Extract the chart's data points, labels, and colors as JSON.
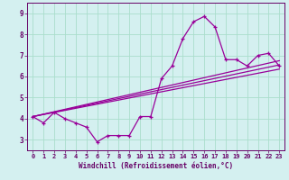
{
  "xlabel": "Windchill (Refroidissement éolien,°C)",
  "x_hours": [
    0,
    1,
    2,
    3,
    4,
    5,
    6,
    7,
    8,
    9,
    10,
    11,
    12,
    13,
    14,
    15,
    16,
    17,
    18,
    19,
    20,
    21,
    22,
    23
  ],
  "y_data": [
    4.1,
    3.8,
    4.3,
    4.0,
    3.8,
    3.6,
    2.9,
    3.2,
    3.2,
    3.2,
    4.1,
    4.1,
    5.9,
    6.5,
    7.8,
    8.6,
    8.85,
    8.35,
    6.8,
    6.8,
    6.5,
    7.0,
    7.1,
    6.5
  ],
  "trend1_x": [
    0,
    23
  ],
  "trend1_y": [
    4.1,
    6.35
  ],
  "trend2_x": [
    0,
    23
  ],
  "trend2_y": [
    4.1,
    6.55
  ],
  "trend3_x": [
    0,
    23
  ],
  "trend3_y": [
    4.1,
    6.75
  ],
  "xlim": [
    -0.5,
    23.5
  ],
  "ylim": [
    2.5,
    9.5
  ],
  "yticks": [
    3,
    4,
    5,
    6,
    7,
    8,
    9
  ],
  "xticks": [
    0,
    1,
    2,
    3,
    4,
    5,
    6,
    7,
    8,
    9,
    10,
    11,
    12,
    13,
    14,
    15,
    16,
    17,
    18,
    19,
    20,
    21,
    22,
    23
  ],
  "line_color": "#990099",
  "bg_color": "#d4f0f0",
  "grid_color": "#aaddcc",
  "axis_color": "#660066",
  "label_color": "#660066",
  "tick_fontsize": 5.0,
  "xlabel_fontsize": 5.5
}
